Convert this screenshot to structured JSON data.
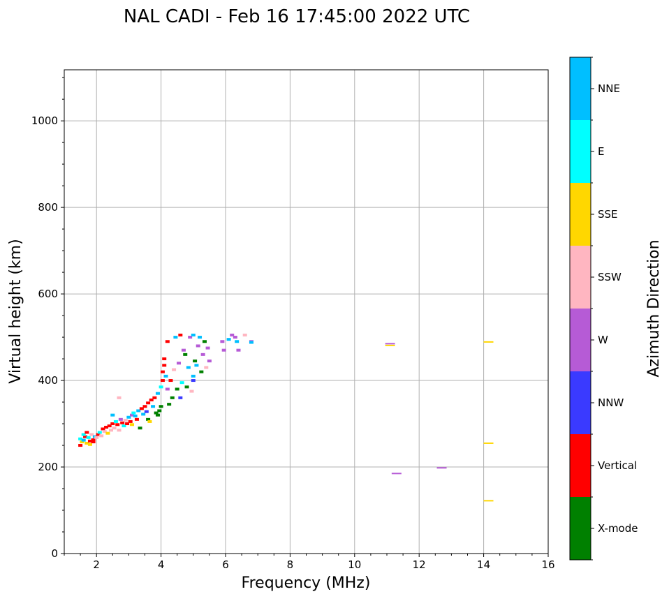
{
  "chart_data": {
    "type": "scatter",
    "title": "NAL CADI - Feb 16 17:45:00 2022 UTC",
    "xlabel": "Frequency (MHz)",
    "ylabel": "Virtual height (km)",
    "xlim": [
      1,
      16
    ],
    "ylim": [
      0,
      1118
    ],
    "xticks": [
      2,
      4,
      6,
      8,
      10,
      12,
      14,
      16
    ],
    "yticks": [
      0,
      200,
      400,
      600,
      800,
      1000
    ],
    "grid": true,
    "colorbar": {
      "label": "Azimuth Direction",
      "categories": [
        "X-mode",
        "Vertical",
        "NNW",
        "W",
        "SSW",
        "SSE",
        "E",
        "NNE"
      ],
      "colors": [
        "#008000",
        "#ff0000",
        "#3a3aff",
        "#b65bd6",
        "#ffb6c1",
        "#ffd700",
        "#00ffff",
        "#00bfff"
      ]
    },
    "points_format": [
      "frequency_mhz",
      "virtual_height_km",
      "category_index"
    ],
    "points": [
      [
        1.5,
        265,
        6
      ],
      [
        1.55,
        258,
        5
      ],
      [
        1.6,
        262,
        7
      ],
      [
        1.65,
        270,
        1
      ],
      [
        1.7,
        255,
        5
      ],
      [
        1.75,
        268,
        6
      ],
      [
        1.8,
        260,
        1
      ],
      [
        1.85,
        275,
        4
      ],
      [
        1.9,
        263,
        1
      ],
      [
        1.95,
        270,
        7
      ],
      [
        1.5,
        250,
        1
      ],
      [
        1.6,
        275,
        6
      ],
      [
        1.7,
        280,
        1
      ],
      [
        1.8,
        252,
        5
      ],
      [
        1.9,
        258,
        1
      ],
      [
        2.0,
        268,
        4
      ],
      [
        2.05,
        275,
        1
      ],
      [
        2.1,
        280,
        6
      ],
      [
        2.15,
        272,
        4
      ],
      [
        2.2,
        288,
        1
      ],
      [
        2.25,
        282,
        4
      ],
      [
        2.3,
        292,
        1
      ],
      [
        2.35,
        278,
        5
      ],
      [
        2.4,
        295,
        1
      ],
      [
        2.45,
        285,
        4
      ],
      [
        2.5,
        300,
        1
      ],
      [
        2.5,
        320,
        7
      ],
      [
        2.55,
        290,
        4
      ],
      [
        2.6,
        305,
        6
      ],
      [
        2.65,
        298,
        1
      ],
      [
        2.7,
        285,
        4
      ],
      [
        2.7,
        360,
        4
      ],
      [
        2.75,
        310,
        3
      ],
      [
        2.8,
        302,
        1
      ],
      [
        2.85,
        295,
        6
      ],
      [
        2.9,
        308,
        4
      ],
      [
        2.95,
        300,
        1
      ],
      [
        3.0,
        315,
        7
      ],
      [
        3.05,
        305,
        1
      ],
      [
        3.1,
        298,
        5
      ],
      [
        3.1,
        320,
        3
      ],
      [
        3.15,
        325,
        6
      ],
      [
        3.2,
        318,
        7
      ],
      [
        3.25,
        310,
        1
      ],
      [
        3.3,
        330,
        7
      ],
      [
        3.35,
        290,
        0
      ],
      [
        3.4,
        335,
        1
      ],
      [
        3.45,
        322,
        7
      ],
      [
        3.5,
        340,
        1
      ],
      [
        3.55,
        328,
        2
      ],
      [
        3.6,
        348,
        1
      ],
      [
        3.6,
        310,
        0
      ],
      [
        3.65,
        305,
        5
      ],
      [
        3.7,
        355,
        1
      ],
      [
        3.75,
        340,
        7
      ],
      [
        3.8,
        360,
        1
      ],
      [
        3.85,
        325,
        0
      ],
      [
        3.9,
        370,
        7
      ],
      [
        3.95,
        330,
        0
      ],
      [
        4.0,
        385,
        6
      ],
      [
        4.0,
        340,
        0
      ],
      [
        4.05,
        400,
        1
      ],
      [
        4.05,
        420,
        1
      ],
      [
        4.1,
        435,
        1
      ],
      [
        4.1,
        450,
        1
      ],
      [
        4.15,
        410,
        7
      ],
      [
        4.2,
        380,
        3
      ],
      [
        4.2,
        490,
        1
      ],
      [
        4.25,
        345,
        0
      ],
      [
        4.3,
        400,
        1
      ],
      [
        4.35,
        360,
        0
      ],
      [
        4.4,
        425,
        4
      ],
      [
        4.45,
        500,
        7
      ],
      [
        4.5,
        380,
        0
      ],
      [
        4.55,
        440,
        3
      ],
      [
        4.6,
        505,
        1
      ],
      [
        4.65,
        395,
        6
      ],
      [
        4.7,
        470,
        3
      ],
      [
        4.75,
        460,
        0
      ],
      [
        4.8,
        385,
        0
      ],
      [
        4.85,
        430,
        7
      ],
      [
        4.9,
        500,
        3
      ],
      [
        4.95,
        375,
        4
      ],
      [
        5.0,
        505,
        7
      ],
      [
        5.0,
        410,
        7
      ],
      [
        5.05,
        445,
        0
      ],
      [
        5.1,
        435,
        7
      ],
      [
        5.15,
        480,
        3
      ],
      [
        5.2,
        500,
        7
      ],
      [
        5.25,
        420,
        0
      ],
      [
        5.3,
        460,
        3
      ],
      [
        5.35,
        490,
        0
      ],
      [
        5.4,
        430,
        4
      ],
      [
        5.45,
        475,
        3
      ],
      [
        5.5,
        445,
        3
      ],
      [
        4.6,
        360,
        2
      ],
      [
        3.9,
        320,
        0
      ],
      [
        5.0,
        400,
        2
      ],
      [
        5.9,
        490,
        3
      ],
      [
        5.95,
        470,
        3
      ],
      [
        6.1,
        495,
        7
      ],
      [
        6.2,
        505,
        3
      ],
      [
        6.3,
        500,
        3
      ],
      [
        6.35,
        490,
        7
      ],
      [
        6.4,
        470,
        3
      ],
      [
        6.6,
        505,
        4
      ],
      [
        6.8,
        490,
        3
      ],
      [
        6.8,
        488,
        7
      ],
      [
        11.1,
        485,
        3
      ],
      [
        11.1,
        481,
        5
      ],
      [
        14.15,
        489,
        5
      ],
      [
        14.15,
        255,
        5
      ],
      [
        14.15,
        122,
        5
      ],
      [
        11.3,
        185,
        3
      ],
      [
        12.7,
        198,
        3
      ]
    ]
  }
}
